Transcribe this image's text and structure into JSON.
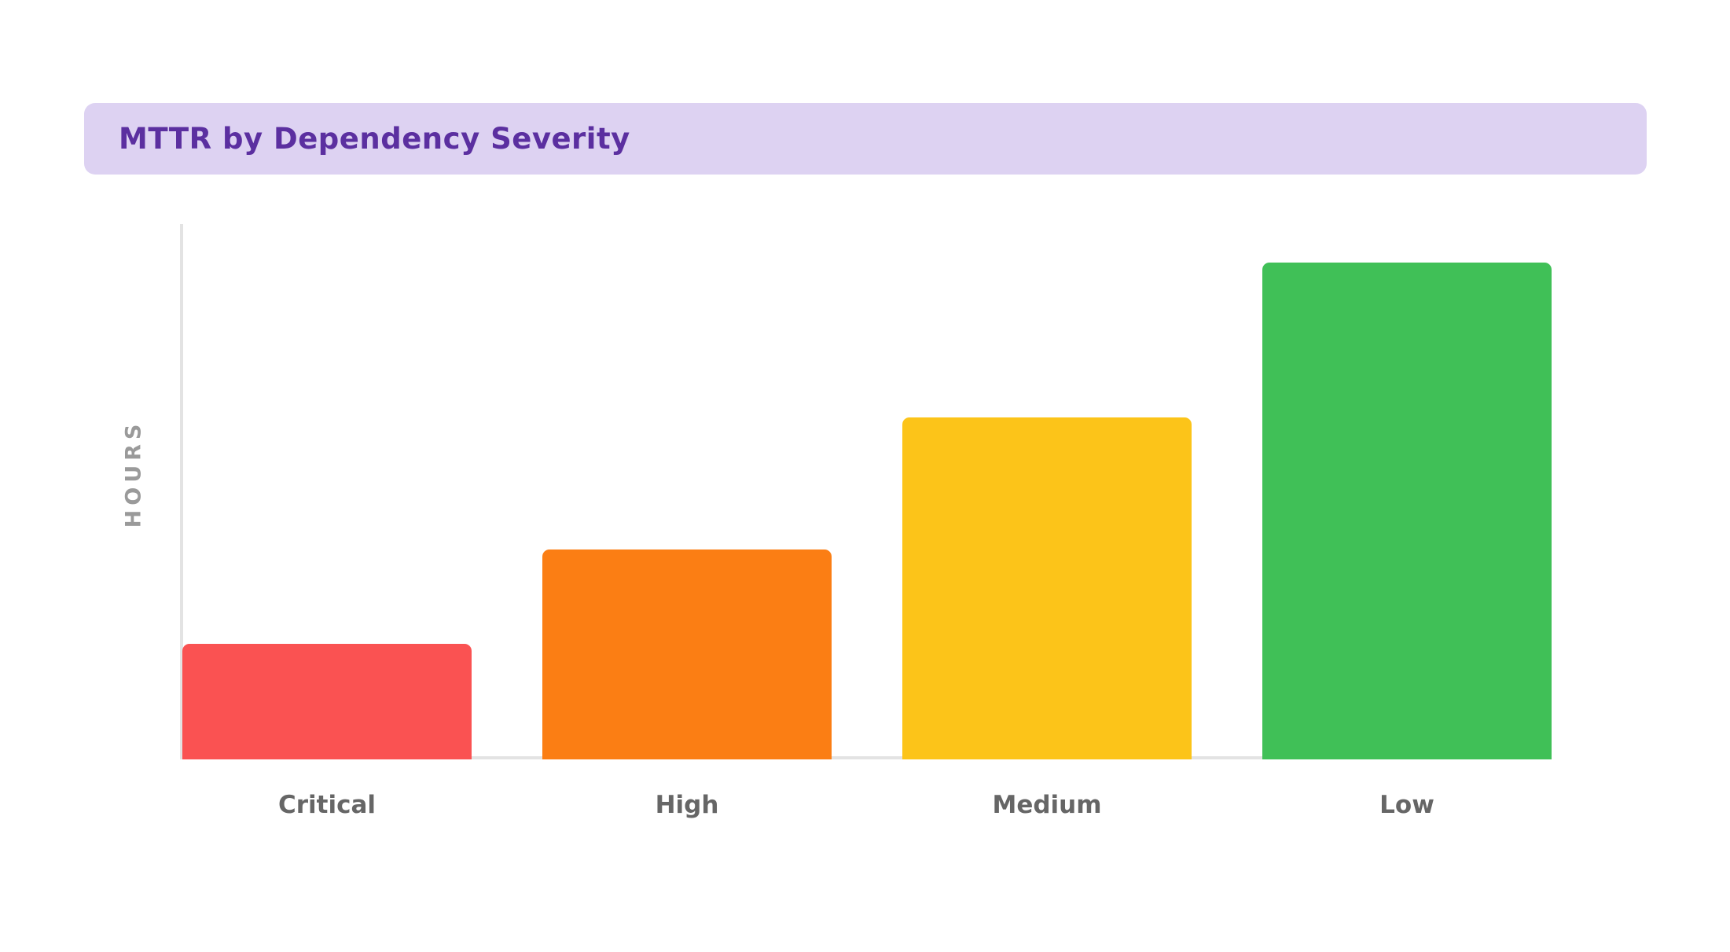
{
  "header": {
    "title": "MTTR by Dependency Severity",
    "bg_color": "#ddd2f2",
    "text_color": "#5b2fa0"
  },
  "chart_data": {
    "type": "bar",
    "title": "MTTR by Dependency Severity",
    "categories": [
      "Critical",
      "High",
      "Medium",
      "Low"
    ],
    "values": [
      2.1,
      3.8,
      6.2,
      9.0
    ],
    "xlabel": "",
    "ylabel": "HOURS",
    "ylim": [
      0,
      9.7
    ],
    "grid": false,
    "legend": false,
    "bar_colors": [
      "#fa5252",
      "#fb7e14",
      "#fcc419",
      "#40c057"
    ],
    "axis_color": "#e3e3e3",
    "category_label_color": "#666666",
    "ylabel_color": "#9a9a9a"
  }
}
